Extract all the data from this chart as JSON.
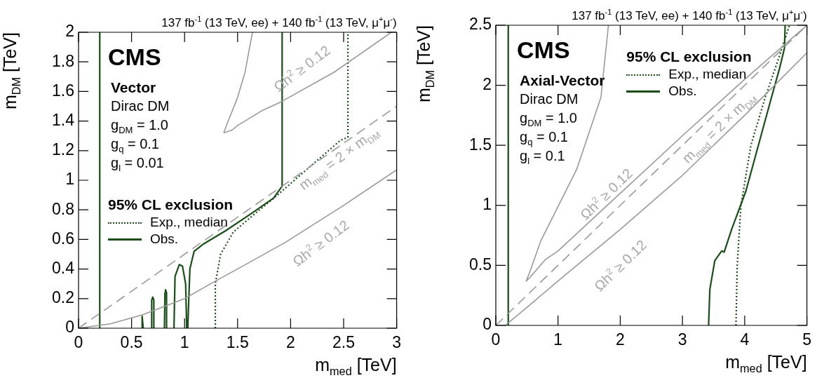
{
  "chart_data": [
    {
      "type": "line",
      "subtitle": "137 fb$^{-1}$ (13 TeV, ee) + 140 fb$^{-1}$ (13 TeV, μ$^{+}$μ$^{-}$)",
      "xlabel": "m$_{med}$ [TeV]",
      "ylabel": "m$_{DM}$ [TeV]",
      "legend_title": "95% CL exclusion",
      "legend": "left",
      "grid": false,
      "xlim": [
        0,
        3
      ],
      "xticks": [
        0,
        0.5,
        1,
        1.5,
        2,
        2.5,
        3
      ],
      "ylim": [
        0,
        2
      ],
      "yticks": [
        0,
        0.2,
        0.4,
        0.6,
        0.8,
        1,
        1.2,
        1.4,
        1.6,
        1.8,
        2
      ],
      "annotations": [
        "CMS",
        "Vector",
        "Dirac DM",
        "g$_{DM}$ = 1.0",
        "g$_{q}$ = 0.1",
        "g$_{l}$ = 0.01",
        "Ωh$^{2}$ ≥ 0.12",
        "m$_{med}$ = 2 × m$_{DM}$",
        "Ωh$^{2}$ ≥ 0.12"
      ],
      "series": [
        {
          "color": "#999999",
          "line_style": "solid",
          "x": [
            0,
            0.3,
            0.6,
            1.0,
            1.27,
            1.6,
            1.95,
            2.5,
            3.0
          ],
          "values": [
            0,
            0.03,
            0.09,
            0.2,
            0.31,
            0.44,
            0.58,
            0.83,
            1.07
          ]
        },
        {
          "color": "#999999",
          "line_style": "solid",
          "x": [
            1.64,
            1.57,
            1.5,
            1.4,
            1.37,
            1.45,
            1.5,
            1.73,
            1.91,
            2.41,
            2.95
          ],
          "values": [
            2,
            1.73,
            1.56,
            1.38,
            1.32,
            1.34,
            1.37,
            1.47,
            1.53,
            1.73,
            2
          ]
        },
        {
          "color": "#999999",
          "line_style": "dashed",
          "x": [
            0,
            3
          ],
          "values": [
            0,
            1.5
          ]
        },
        {
          "name": "Exp., median",
          "color": "#1a4d1a",
          "line_style": "dotted",
          "x": [
            1.29,
            1.29,
            1.34,
            1.46,
            1.64,
            1.86,
            2.18,
            2.47,
            2.54,
            2.54
          ],
          "values": [
            0,
            0.3,
            0.5,
            0.65,
            0.76,
            0.89,
            1.09,
            1.27,
            1.29,
            2
          ]
        },
        {
          "name": "Obs.",
          "color": "#1a4d1a",
          "line_style": "solid",
          "x": [
            0.2,
            0.2,
            null,
            0.6,
            0.6,
            0.61,
            null,
            0.69,
            0.69,
            0.7,
            0.71,
            0.71,
            null,
            0.81,
            0.815,
            0.82,
            0.83,
            0.83,
            null,
            0.9,
            0.91,
            0.95,
            0.98,
            1.01,
            1.02,
            null,
            1.03,
            1.05,
            1.09,
            1.18,
            1.39,
            1.64,
            1.84,
            1.92,
            1.92
          ],
          "values": [
            2,
            0,
            null,
            0,
            0.08,
            0,
            null,
            0,
            0.19,
            0.21,
            0.19,
            0,
            null,
            0,
            0.24,
            0.26,
            0.24,
            0,
            null,
            0,
            0.35,
            0.43,
            0.42,
            0.3,
            0,
            null,
            0,
            0.4,
            0.52,
            0.57,
            0.66,
            0.78,
            0.88,
            0.96,
            2
          ]
        }
      ]
    },
    {
      "type": "line",
      "subtitle": "137 fb$^{-1}$ (13 TeV, ee) + 140 fb$^{-1}$ (13 TeV, μ$^{+}$μ$^{-}$)",
      "xlabel": "m$_{med}$ [TeV]",
      "ylabel": "m$_{DM}$ [TeV]",
      "legend_title": "95% CL exclusion",
      "legend": "top",
      "grid": false,
      "xlim": [
        0,
        5
      ],
      "xticks": [
        0,
        1,
        2,
        3,
        4,
        5
      ],
      "ylim": [
        0,
        2.5
      ],
      "yticks": [
        0,
        0.5,
        1,
        1.5,
        2,
        2.5
      ],
      "annotations": [
        "CMS",
        "Axial-Vector",
        "Dirac DM",
        "g$_{DM}$ = 1.0",
        "g$_{q}$ = 0.1",
        "g$_{l}$ = 0.1",
        "Ωh$^{2}$ ≥ 0.12",
        "m$_{med}$ = 2 × m$_{DM}$",
        "Ωh$^{2}$ ≥ 0.12"
      ],
      "series": [
        {
          "color": "#999999",
          "line_style": "solid",
          "x": [
            1.81,
            1.69,
            1.3,
            0.72,
            0.55,
            0.49,
            0.55,
            0.8,
            1.0,
            2.0,
            3.0,
            4.0,
            5.0
          ],
          "values": [
            2.5,
            1.9,
            1.3,
            0.7,
            0.45,
            0.37,
            0.4,
            0.55,
            0.62,
            1.1,
            1.58,
            2.05,
            2.5
          ]
        },
        {
          "color": "#999999",
          "line_style": "solid",
          "x": [
            0.15,
            0.5,
            1,
            2,
            3,
            4,
            5
          ],
          "values": [
            0,
            0.15,
            0.37,
            0.8,
            1.25,
            1.75,
            2.27
          ]
        },
        {
          "color": "#999999",
          "line_style": "dashed",
          "x": [
            0,
            5
          ],
          "values": [
            0,
            2.5
          ]
        },
        {
          "name": "Exp., median",
          "color": "#1a4d1a",
          "line_style": "dotted",
          "x": [
            3.86,
            3.88,
            3.94,
            4.1,
            4.33,
            4.53,
            4.72
          ],
          "values": [
            0,
            0.5,
            1.0,
            1.5,
            1.9,
            2.2,
            2.5
          ]
        },
        {
          "name": "Obs.",
          "color": "#1a4d1a",
          "line_style": "solid",
          "x": [
            0.2,
            0.2,
            null,
            3.42,
            3.44,
            3.52,
            3.63,
            3.67,
            3.79,
            4.02,
            4.22,
            4.41,
            4.56,
            4.64,
            4.65
          ],
          "values": [
            2.5,
            0,
            null,
            0,
            0.3,
            0.54,
            0.62,
            0.61,
            0.8,
            1.12,
            1.5,
            1.86,
            2.14,
            2.31,
            2.5
          ]
        }
      ]
    }
  ]
}
